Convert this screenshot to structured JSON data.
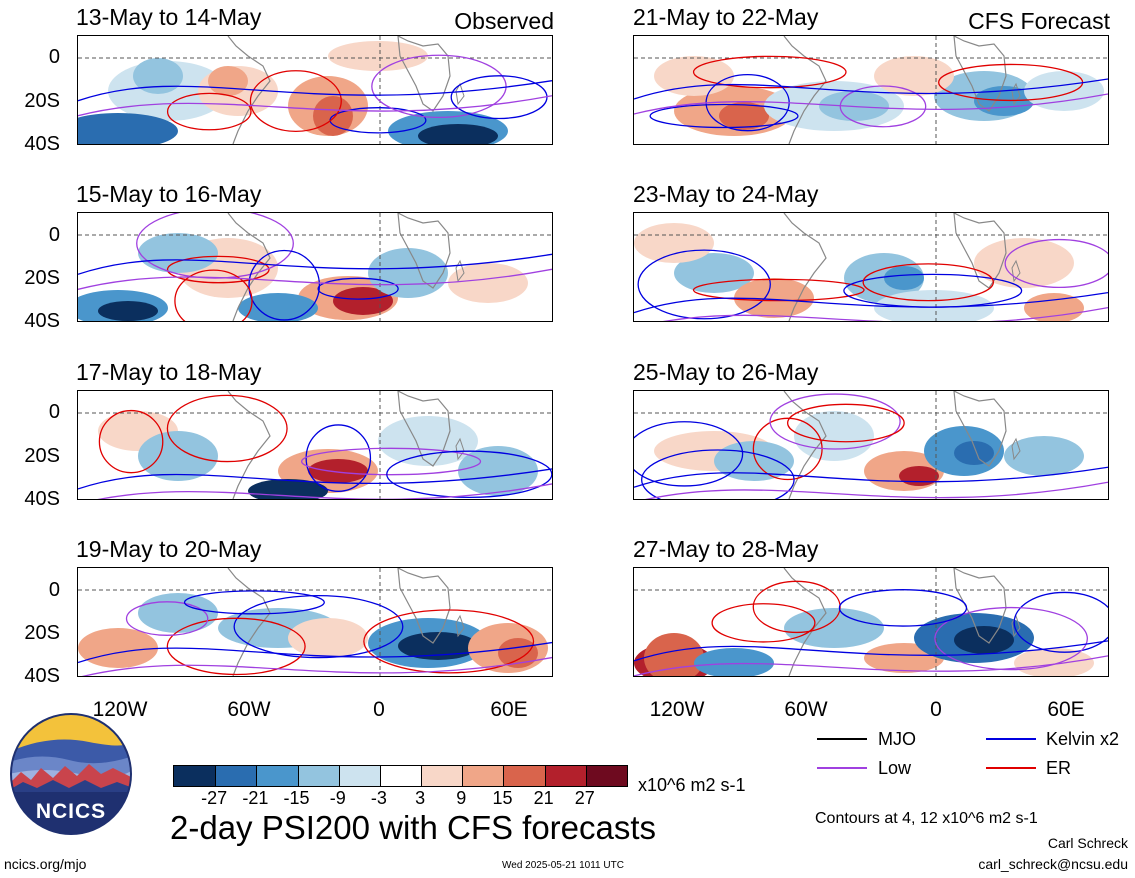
{
  "panels": [
    {
      "title": "13-May to 14-May",
      "tag": "Observed"
    },
    {
      "title": "21-May to 22-May",
      "tag": "CFS Forecast"
    },
    {
      "title": "15-May to 16-May",
      "tag": ""
    },
    {
      "title": "23-May to 24-May",
      "tag": ""
    },
    {
      "title": "17-May to 18-May",
      "tag": ""
    },
    {
      "title": "25-May to 26-May",
      "tag": ""
    },
    {
      "title": "19-May to 20-May",
      "tag": ""
    },
    {
      "title": "27-May to 28-May",
      "tag": ""
    }
  ],
  "y_labels": [
    "0",
    "20S",
    "40S"
  ],
  "x_labels": [
    "120W",
    "60W",
    "0",
    "60E"
  ],
  "colorbar": {
    "colors": [
      "#0b2f5e",
      "#2a6db0",
      "#4a96cc",
      "#93c4df",
      "#cde3ef",
      "#ffffff",
      "#f8d7c8",
      "#f0a688",
      "#d9644c",
      "#b3202c",
      "#6e0a1f"
    ],
    "ticks": [
      "-27",
      "-21",
      "-15",
      "-9",
      "-3",
      "3",
      "9",
      "15",
      "21",
      "27"
    ],
    "units": "x10^6 m2 s-1"
  },
  "legend": [
    {
      "label": "MJO",
      "color": "#000000"
    },
    {
      "label": "Kelvin x2",
      "color": "#0000e0"
    },
    {
      "label": "Low",
      "color": "#a040e0"
    },
    {
      "label": "ER",
      "color": "#e00000"
    }
  ],
  "contours_note": "Contours at 4, 12 x10^6 m2 s-1",
  "author_name": "Carl Schreck",
  "author_email": "carl_schreck@ncsu.edu",
  "main_title": "2-day PSI200 with CFS forecasts",
  "logo_text": "NCICS",
  "site": "ncics.org/mjo",
  "timestamp": "Wed 2025-05-21 1011 UTC"
}
